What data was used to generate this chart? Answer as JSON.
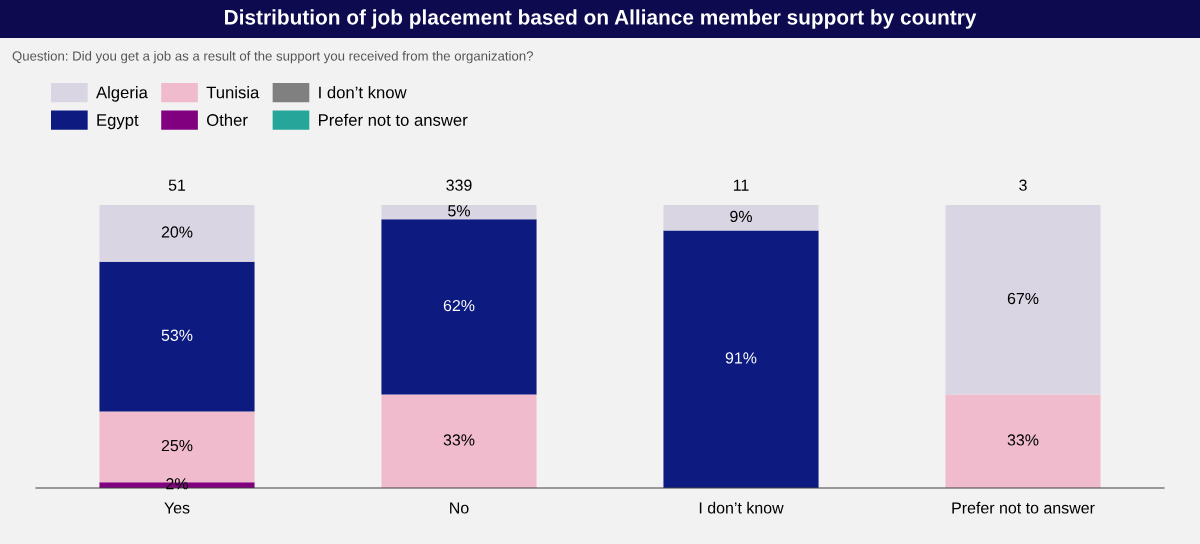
{
  "chart_data": {
    "type": "bar",
    "stacked": true,
    "title": "Distribution of job placement based on Alliance member support by country",
    "subtitle": "Question: Did you get a job as a result of the support you received from the organization?",
    "categories": [
      "Yes",
      "No",
      "I don’t know",
      "Prefer not to answer"
    ],
    "series": [
      {
        "name": "Other",
        "color": "#800080",
        "values": [
          2,
          null,
          null,
          null
        ],
        "value_labels": [
          "2%",
          null,
          null,
          null
        ]
      },
      {
        "name": "Tunisia",
        "color": "#f0bccd",
        "values": [
          25,
          33,
          null,
          33
        ],
        "value_labels": [
          "25%",
          "33%",
          null,
          "33%"
        ]
      },
      {
        "name": "Egypt",
        "color": "#0d1a80",
        "values": [
          53,
          62,
          91,
          null
        ],
        "value_labels": [
          "53%",
          "62%",
          "91%",
          null
        ]
      },
      {
        "name": "Algeria",
        "color": "#d9d5e3",
        "values": [
          20,
          5,
          9,
          67
        ],
        "value_labels": [
          "20%",
          "5%",
          "9%",
          "67%"
        ]
      },
      {
        "name": "I don’t know",
        "color": "#808080",
        "values": [
          null,
          null,
          null,
          null
        ]
      },
      {
        "name": "Prefer not to answer",
        "color": "#26a69a",
        "values": [
          null,
          null,
          null,
          null
        ]
      }
    ],
    "annotations": [
      {
        "text": "51",
        "x": "Yes",
        "y": 100
      },
      {
        "text": "339",
        "x": "No",
        "y": 100
      },
      {
        "text": "11",
        "x": "I don’t know",
        "y": 100
      },
      {
        "text": "3",
        "x": "Prefer not to answer",
        "y": 100
      }
    ],
    "legend": "top left",
    "grid": false
  }
}
